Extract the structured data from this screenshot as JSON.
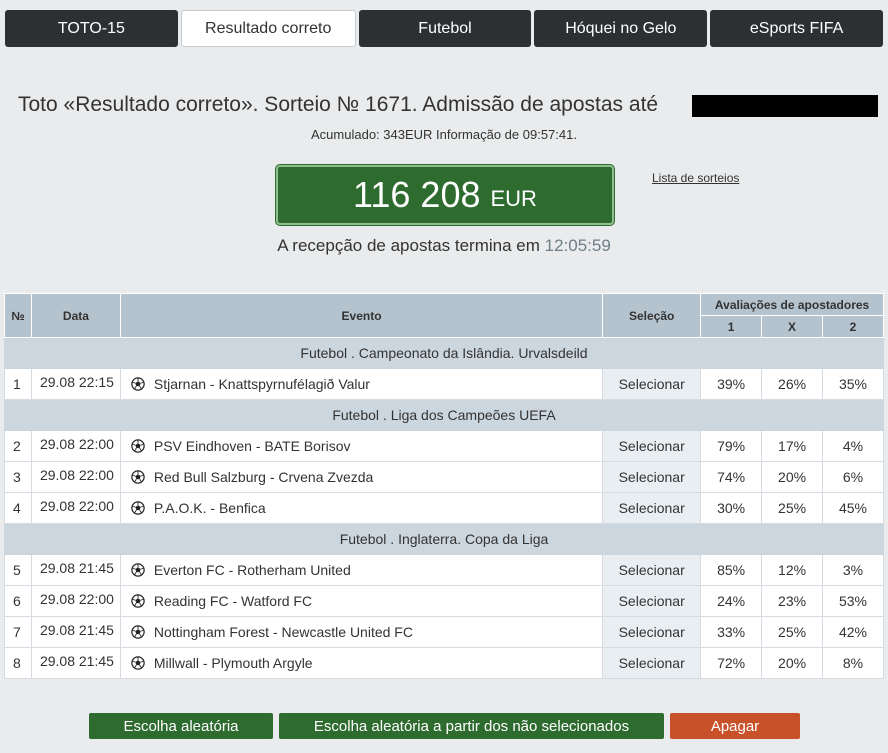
{
  "tabs": [
    {
      "label": "TOTO-15"
    },
    {
      "label": "Resultado correto"
    },
    {
      "label": "Futebol"
    },
    {
      "label": "Hóquei no Gelo"
    },
    {
      "label": "eSports FIFA"
    }
  ],
  "header": {
    "title": "Toto «Resultado correto». Sorteio № 1671. Admissão de apostas até",
    "accumulated": "Acumulado: 343EUR Informação de 09:57:41.",
    "jackpot_amount": "116 208",
    "jackpot_currency": "EUR",
    "draws_link": "Lista de sorteios",
    "deadline_label": "A recepção de apostas termina em",
    "deadline_time": "12:05:59"
  },
  "table": {
    "col_num": "№",
    "col_date": "Data",
    "col_event": "Evento",
    "col_selection": "Seleção",
    "col_ratings": "Avaliações de apostadores",
    "col_1": "1",
    "col_x": "X",
    "col_2": "2",
    "select_label": "Selecionar",
    "groups": [
      {
        "title": "Futebol . Campeonato da Islândia. Urvalsdeild"
      },
      {
        "title": "Futebol . Liga dos Campeões UEFA"
      },
      {
        "title": "Futebol . Inglaterra. Copa da Liga"
      }
    ],
    "rows": [
      {
        "num": "1",
        "date": "29.08 22:15",
        "event": "Stjarnan - Knattspyrnufélagið Valur",
        "p1": "39%",
        "px": "26%",
        "p2": "35%"
      },
      {
        "num": "2",
        "date": "29.08 22:00",
        "event": "PSV Eindhoven - BATE Borisov",
        "p1": "79%",
        "px": "17%",
        "p2": "4%"
      },
      {
        "num": "3",
        "date": "29.08 22:00",
        "event": "Red Bull Salzburg - Crvena Zvezda",
        "p1": "74%",
        "px": "20%",
        "p2": "6%"
      },
      {
        "num": "4",
        "date": "29.08 22:00",
        "event": "P.A.O.K. - Benfica",
        "p1": "30%",
        "px": "25%",
        "p2": "45%"
      },
      {
        "num": "5",
        "date": "29.08 21:45",
        "event": "Everton FC - Rotherham United",
        "p1": "85%",
        "px": "12%",
        "p2": "3%"
      },
      {
        "num": "6",
        "date": "29.08 22:00",
        "event": "Reading FC - Watford FC",
        "p1": "24%",
        "px": "23%",
        "p2": "53%"
      },
      {
        "num": "7",
        "date": "29.08 21:45",
        "event": "Nottingham Forest - Newcastle United FC",
        "p1": "33%",
        "px": "25%",
        "p2": "42%"
      },
      {
        "num": "8",
        "date": "29.08 21:45",
        "event": "Millwall - Plymouth Argyle",
        "p1": "72%",
        "px": "20%",
        "p2": "8%"
      }
    ]
  },
  "actions": {
    "random": "Escolha aleatória",
    "random_unselected": "Escolha aleatória a partir dos não selecionados",
    "clear": "Apagar"
  },
  "colors": {
    "accent_green": "#2e6b2f",
    "clear_red": "#c8512a",
    "tab_dark": "#2d3033",
    "header_blue": "#b5c3ce"
  },
  "icons": {
    "event": "soccer-ball-icon"
  }
}
